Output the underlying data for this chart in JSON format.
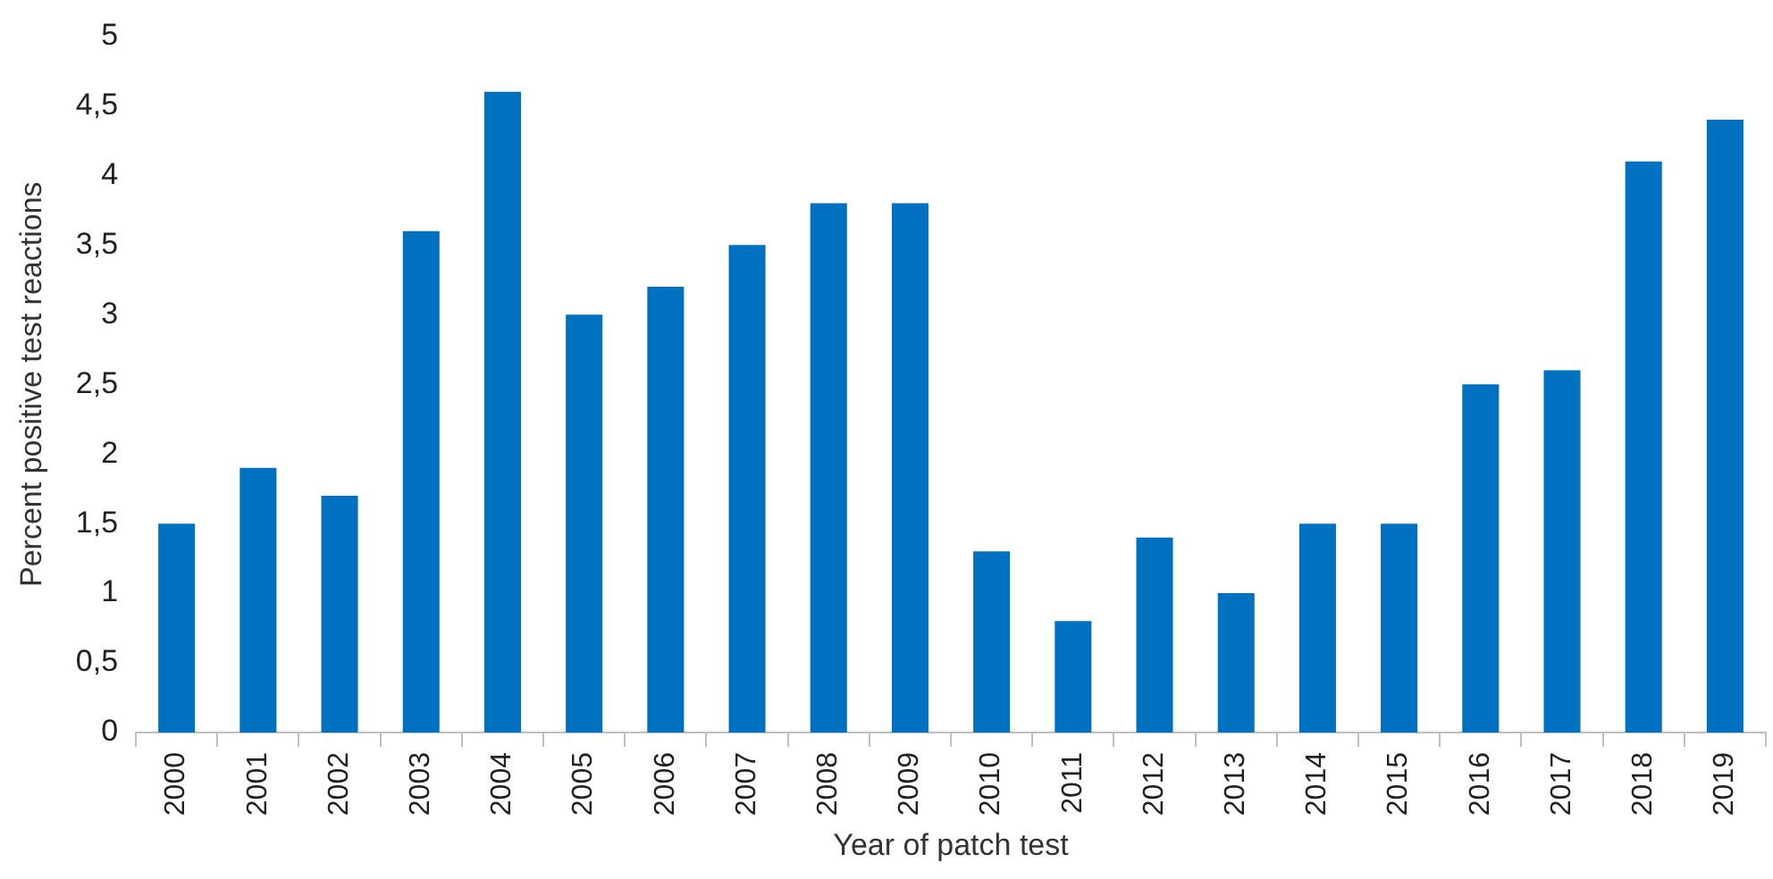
{
  "chart_data": {
    "type": "bar",
    "xlabel": "Year of patch test",
    "ylabel": "Percent positive test reactions",
    "categories": [
      "2000",
      "2001",
      "2002",
      "2003",
      "2004",
      "2005",
      "2006",
      "2007",
      "2008",
      "2009",
      "2010",
      "2011",
      "2012",
      "2013",
      "2014",
      "2015",
      "2016",
      "2017",
      "2018",
      "2019"
    ],
    "values": [
      1.5,
      1.9,
      1.7,
      3.6,
      4.6,
      3.0,
      3.2,
      3.5,
      3.8,
      3.8,
      1.3,
      0.8,
      1.4,
      1.0,
      1.5,
      1.5,
      2.5,
      2.6,
      4.1,
      4.4
    ],
    "color": "#0070c0",
    "ylim": [
      0,
      5
    ],
    "yticks": [
      0,
      {
        "value": 0.5,
        "label": "0,5"
      },
      1,
      {
        "value": 1.5,
        "label": "1,5"
      },
      2,
      {
        "value": 2.5,
        "label": "2,5"
      },
      3,
      {
        "value": 3.5,
        "label": "3,5"
      },
      4,
      {
        "value": 4.5,
        "label": "4,5"
      },
      5
    ],
    "grid": false,
    "legend": false
  }
}
